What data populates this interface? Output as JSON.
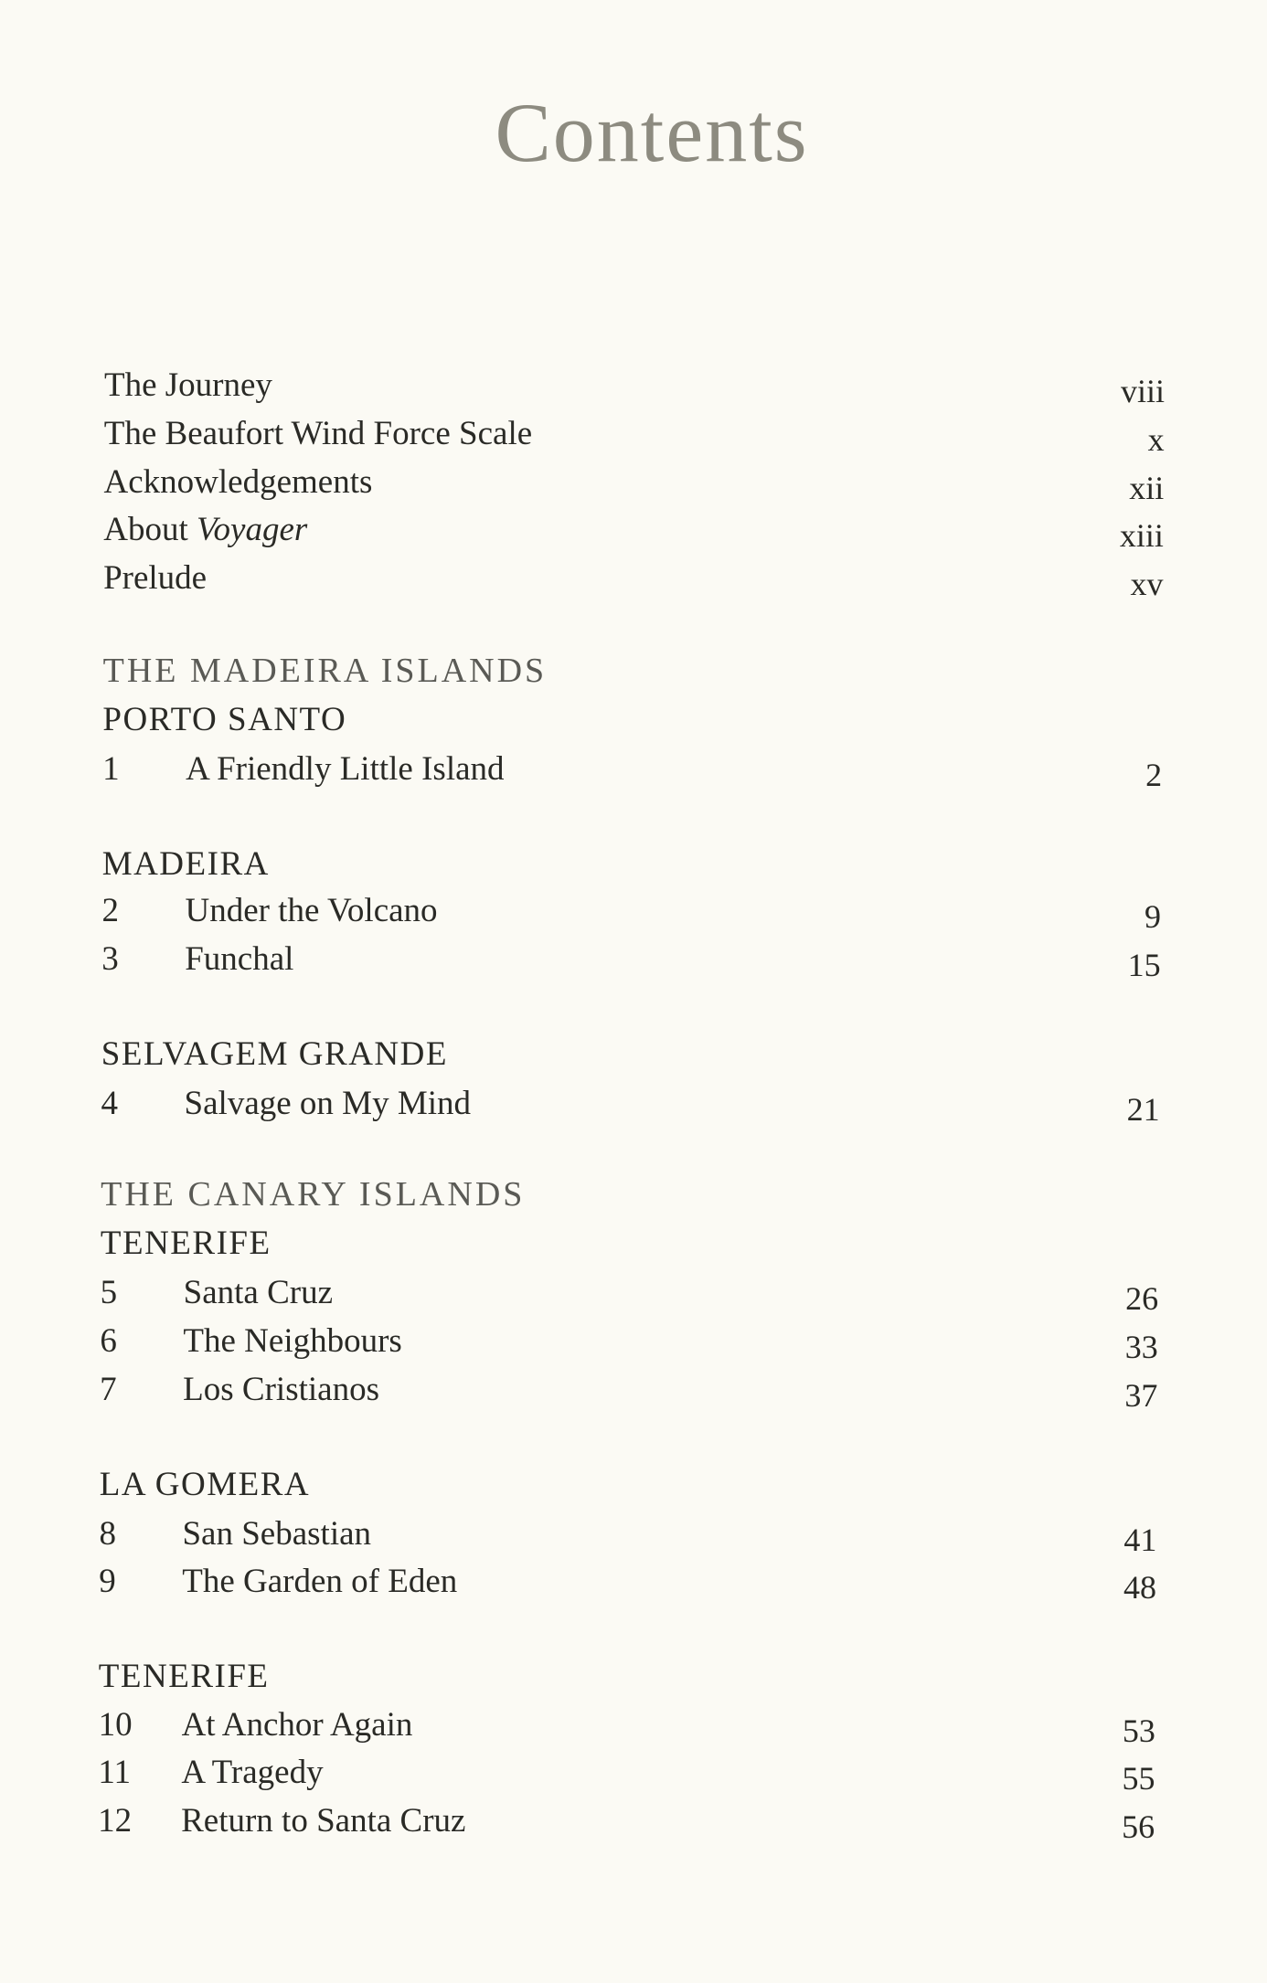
{
  "page_title": "Contents",
  "front_matter": [
    {
      "title": "The Journey",
      "page": "viii"
    },
    {
      "title": "The Beaufort Wind Force Scale",
      "page": "x"
    },
    {
      "title": "Acknowledgements",
      "page": "xii"
    },
    {
      "title_prefix": "About ",
      "title_italic": "Voyager",
      "page": "xiii"
    },
    {
      "title": "Prelude",
      "page": "xv"
    }
  ],
  "parts": [
    {
      "region": "THE MADEIRA ISLANDS",
      "sections": [
        {
          "island": "PORTO SANTO",
          "chapters": [
            {
              "number": "1",
              "title": "A Friendly Little Island",
              "page": "2"
            }
          ]
        },
        {
          "island": "MADEIRA",
          "chapters": [
            {
              "number": "2",
              "title": "Under the Volcano",
              "page": "9"
            },
            {
              "number": "3",
              "title": "Funchal",
              "page": "15"
            }
          ]
        },
        {
          "island": "SELVAGEM GRANDE",
          "chapters": [
            {
              "number": "4",
              "title": "Salvage on My Mind",
              "page": "21"
            }
          ]
        }
      ]
    },
    {
      "region": "THE CANARY ISLANDS",
      "sections": [
        {
          "island": "TENERIFE",
          "chapters": [
            {
              "number": "5",
              "title": "Santa Cruz",
              "page": "26"
            },
            {
              "number": "6",
              "title": "The Neighbours",
              "page": "33"
            },
            {
              "number": "7",
              "title": "Los Cristianos",
              "page": "37"
            }
          ]
        },
        {
          "island": "LA GOMERA",
          "chapters": [
            {
              "number": "8",
              "title": "San Sebastian",
              "page": "41"
            },
            {
              "number": "9",
              "title": "The Garden of Eden",
              "page": "48"
            }
          ]
        },
        {
          "island": "TENERIFE",
          "chapters": [
            {
              "number": "10",
              "title": "At Anchor Again",
              "page": "53"
            },
            {
              "number": "11",
              "title": "A Tragedy",
              "page": "55"
            },
            {
              "number": "12",
              "title": "Return to Santa Cruz",
              "page": "56"
            }
          ]
        }
      ]
    }
  ]
}
